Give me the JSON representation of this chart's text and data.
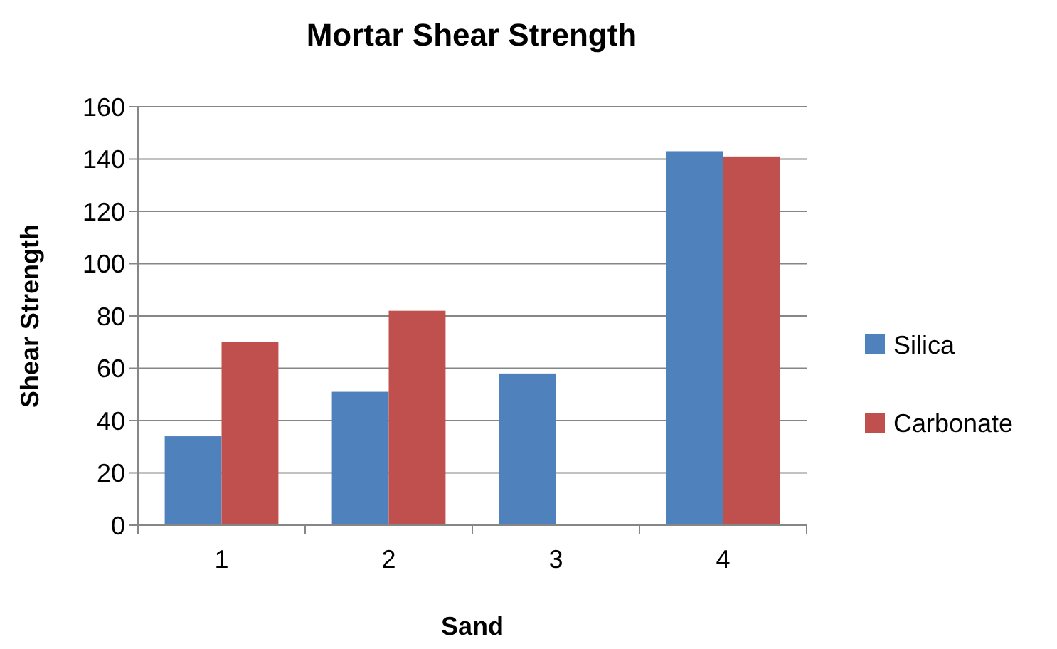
{
  "chart_data": {
    "type": "bar",
    "title": "Mortar Shear Strength",
    "xlabel": "Sand",
    "ylabel": "Shear Strength",
    "categories": [
      "1",
      "2",
      "3",
      "4"
    ],
    "series": [
      {
        "name": "Silica",
        "color": "#4f81bd",
        "values": [
          34,
          51,
          58,
          143
        ]
      },
      {
        "name": "Carbonate",
        "color": "#c0504d",
        "values": [
          70,
          82,
          null,
          141
        ]
      }
    ],
    "ylim": [
      0,
      160
    ],
    "yticks": [
      0,
      20,
      40,
      60,
      80,
      100,
      120,
      140,
      160
    ],
    "grid": "y",
    "legend": "right"
  }
}
